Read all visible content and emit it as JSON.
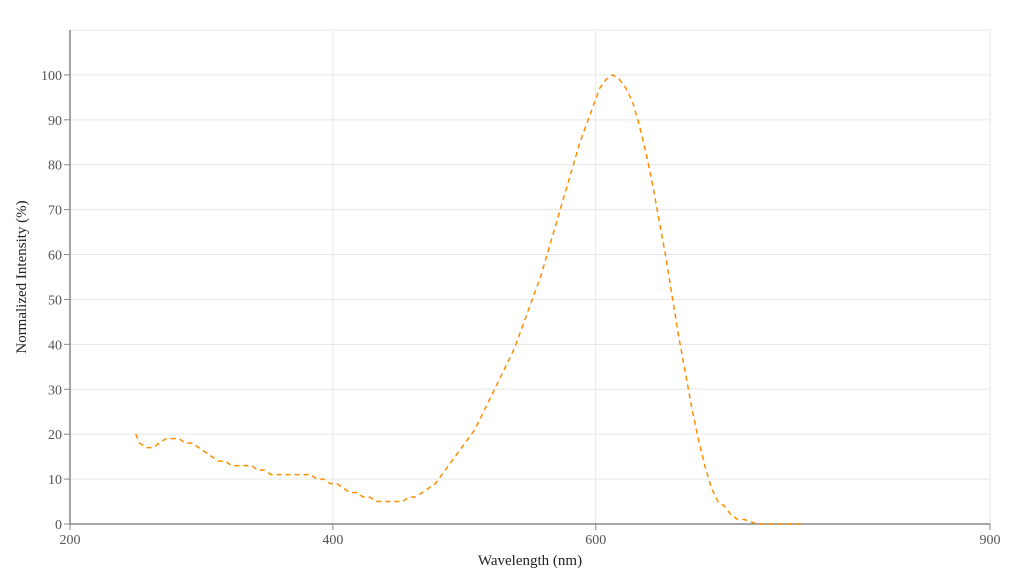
{
  "chart_data": {
    "type": "line",
    "title": "",
    "xlabel": "Wavelength (nm)",
    "ylabel": "Normalized Intensity (%)",
    "xlim": [
      200,
      900
    ],
    "ylim": [
      0,
      110
    ],
    "x_ticks": [
      200,
      400,
      600,
      900
    ],
    "y_ticks": [
      0,
      10,
      20,
      30,
      40,
      50,
      60,
      70,
      80,
      90,
      100
    ],
    "x_tick_labels": [
      "200",
      "400",
      "600",
      "900"
    ],
    "y_tick_labels": [
      "0",
      "10",
      "20",
      "30",
      "40",
      "50",
      "60",
      "70",
      "80",
      "90",
      "100"
    ],
    "grid": true,
    "series": [
      {
        "color": "#ff8c00",
        "line_style": "dashed",
        "x": [
          250,
          253,
          258,
          263,
          268,
          273,
          278,
          283,
          288,
          293,
          298,
          303,
          308,
          313,
          318,
          323,
          328,
          333,
          338,
          343,
          348,
          353,
          358,
          363,
          368,
          373,
          378,
          383,
          388,
          393,
          398,
          403,
          408,
          413,
          418,
          423,
          428,
          433,
          438,
          443,
          448,
          453,
          458,
          463,
          468,
          473,
          478,
          483,
          488,
          493,
          498,
          503,
          508,
          513,
          518,
          523,
          528,
          533,
          538,
          543,
          548,
          553,
          558,
          563,
          568,
          573,
          578,
          583,
          588,
          593,
          598,
          603,
          608,
          613,
          618,
          623,
          628,
          633,
          638,
          643,
          648,
          653,
          658,
          663,
          668,
          673,
          678,
          683,
          688,
          693,
          698,
          703,
          708,
          713,
          718,
          723,
          728,
          733,
          738,
          743,
          748,
          753,
          758
        ],
        "y": [
          20,
          18,
          17,
          17,
          18,
          19,
          19,
          19,
          18,
          18,
          17,
          16,
          15,
          14,
          14,
          13,
          13,
          13,
          13,
          12,
          12,
          11,
          11,
          11,
          11,
          11,
          11,
          11,
          10,
          10,
          9,
          9,
          8,
          7,
          7,
          6,
          6,
          5,
          5,
          5,
          5,
          5,
          6,
          6,
          7,
          8,
          9,
          11,
          13,
          15,
          17,
          19,
          21,
          24,
          27,
          30,
          33,
          36,
          39,
          43,
          47,
          51,
          55,
          60,
          65,
          70,
          75,
          80,
          85,
          89,
          93,
          97,
          99,
          100,
          99,
          97,
          94,
          89,
          83,
          76,
          68,
          60,
          51,
          42,
          34,
          26,
          19,
          13,
          8,
          5,
          4,
          2,
          1,
          1,
          0.5,
          0,
          0,
          0,
          0,
          0,
          0,
          0,
          0
        ]
      }
    ]
  }
}
